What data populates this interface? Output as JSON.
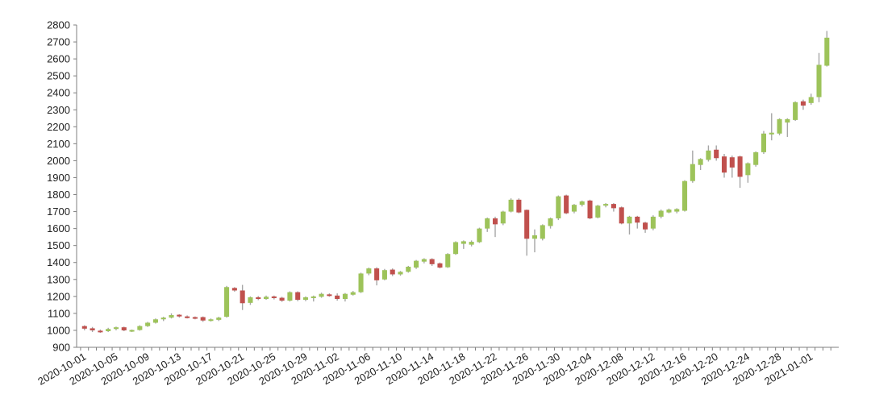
{
  "chart_data": {
    "type": "candlestick",
    "title": "",
    "xlabel": "",
    "ylabel": "",
    "ylim": [
      900,
      2800
    ],
    "yticks": [
      900,
      1000,
      1100,
      1200,
      1300,
      1400,
      1500,
      1600,
      1700,
      1800,
      1900,
      2000,
      2100,
      2200,
      2300,
      2400,
      2500,
      2600,
      2700,
      2800
    ],
    "x_tick_labels": [
      "2020-10-01",
      "2020-10-05",
      "2020-10-09",
      "2020-10-13",
      "2020-10-17",
      "2020-10-21",
      "2020-10-25",
      "2020-10-29",
      "2020-11-02",
      "2020-11-06",
      "2020-11-10",
      "2020-11-14",
      "2020-11-18",
      "2020-11-22",
      "2020-11-26",
      "2020-11-30",
      "2020-12-04",
      "2020-12-08",
      "2020-12-12",
      "2020-12-16",
      "2020-12-20",
      "2020-12-24",
      "2020-12-28",
      "2021-01-01"
    ],
    "grid": false,
    "legend": "none",
    "colors": {
      "up": "#9dc35a",
      "down": "#c0504d",
      "wick": "#a6a6a6",
      "axis": "#7f7f7f"
    },
    "candles": [
      {
        "date": "2020-10-01",
        "open": 1025,
        "close": 1010,
        "high": 1030,
        "low": 1000
      },
      {
        "date": "2020-10-02",
        "open": 1012,
        "close": 1000,
        "high": 1020,
        "low": 990
      },
      {
        "date": "2020-10-03",
        "open": 998,
        "close": 992,
        "high": 1005,
        "low": 985
      },
      {
        "date": "2020-10-04",
        "open": 995,
        "close": 1008,
        "high": 1015,
        "low": 990
      },
      {
        "date": "2020-10-05",
        "open": 1008,
        "close": 1018,
        "high": 1022,
        "low": 1000
      },
      {
        "date": "2020-10-06",
        "open": 1018,
        "close": 1000,
        "high": 1022,
        "low": 995
      },
      {
        "date": "2020-10-07",
        "open": 995,
        "close": 1002,
        "high": 1005,
        "low": 990
      },
      {
        "date": "2020-10-08",
        "open": 1002,
        "close": 1025,
        "high": 1030,
        "low": 998
      },
      {
        "date": "2020-10-09",
        "open": 1025,
        "close": 1045,
        "high": 1050,
        "low": 1020
      },
      {
        "date": "2020-10-10",
        "open": 1045,
        "close": 1065,
        "high": 1070,
        "low": 1040
      },
      {
        "date": "2020-10-11",
        "open": 1065,
        "close": 1075,
        "high": 1080,
        "low": 1055
      },
      {
        "date": "2020-10-12",
        "open": 1075,
        "close": 1090,
        "high": 1100,
        "low": 1070
      },
      {
        "date": "2020-10-13",
        "open": 1092,
        "close": 1082,
        "high": 1095,
        "low": 1075
      },
      {
        "date": "2020-10-14",
        "open": 1082,
        "close": 1075,
        "high": 1088,
        "low": 1070
      },
      {
        "date": "2020-10-15",
        "open": 1078,
        "close": 1072,
        "high": 1082,
        "low": 1065
      },
      {
        "date": "2020-10-16",
        "open": 1078,
        "close": 1058,
        "high": 1082,
        "low": 1050
      },
      {
        "date": "2020-10-17",
        "open": 1058,
        "close": 1065,
        "high": 1070,
        "low": 1052
      },
      {
        "date": "2020-10-18",
        "open": 1062,
        "close": 1075,
        "high": 1080,
        "low": 1055
      },
      {
        "date": "2020-10-19",
        "open": 1080,
        "close": 1255,
        "high": 1262,
        "low": 1075
      },
      {
        "date": "2020-10-20",
        "open": 1250,
        "close": 1235,
        "high": 1255,
        "low": 1228
      },
      {
        "date": "2020-10-21",
        "open": 1235,
        "close": 1160,
        "high": 1268,
        "low": 1120
      },
      {
        "date": "2020-10-22",
        "open": 1162,
        "close": 1195,
        "high": 1200,
        "low": 1150
      },
      {
        "date": "2020-10-23",
        "open": 1195,
        "close": 1185,
        "high": 1202,
        "low": 1178
      },
      {
        "date": "2020-10-24",
        "open": 1185,
        "close": 1198,
        "high": 1205,
        "low": 1180
      },
      {
        "date": "2020-10-25",
        "open": 1200,
        "close": 1190,
        "high": 1205,
        "low": 1182
      },
      {
        "date": "2020-10-26",
        "open": 1192,
        "close": 1175,
        "high": 1198,
        "low": 1168
      },
      {
        "date": "2020-10-27",
        "open": 1175,
        "close": 1225,
        "high": 1230,
        "low": 1170
      },
      {
        "date": "2020-10-28",
        "open": 1225,
        "close": 1180,
        "high": 1230,
        "low": 1172
      },
      {
        "date": "2020-10-29",
        "open": 1180,
        "close": 1195,
        "high": 1200,
        "low": 1172
      },
      {
        "date": "2020-10-30",
        "open": 1190,
        "close": 1200,
        "high": 1205,
        "low": 1170
      },
      {
        "date": "2020-10-31",
        "open": 1198,
        "close": 1215,
        "high": 1222,
        "low": 1192
      },
      {
        "date": "2020-11-01",
        "open": 1212,
        "close": 1205,
        "high": 1218,
        "low": 1198
      },
      {
        "date": "2020-11-02",
        "open": 1205,
        "close": 1185,
        "high": 1218,
        "low": 1175
      },
      {
        "date": "2020-11-03",
        "open": 1185,
        "close": 1215,
        "high": 1220,
        "low": 1170
      },
      {
        "date": "2020-11-04",
        "open": 1210,
        "close": 1225,
        "high": 1232,
        "low": 1205
      },
      {
        "date": "2020-11-05",
        "open": 1225,
        "close": 1335,
        "high": 1340,
        "low": 1220
      },
      {
        "date": "2020-11-06",
        "open": 1335,
        "close": 1365,
        "high": 1370,
        "low": 1325
      },
      {
        "date": "2020-11-07",
        "open": 1365,
        "close": 1295,
        "high": 1372,
        "low": 1265
      },
      {
        "date": "2020-11-08",
        "open": 1300,
        "close": 1355,
        "high": 1362,
        "low": 1295
      },
      {
        "date": "2020-11-09",
        "open": 1358,
        "close": 1330,
        "high": 1365,
        "low": 1320
      },
      {
        "date": "2020-11-10",
        "open": 1330,
        "close": 1345,
        "high": 1350,
        "low": 1322
      },
      {
        "date": "2020-11-11",
        "open": 1345,
        "close": 1375,
        "high": 1380,
        "low": 1340
      },
      {
        "date": "2020-11-12",
        "open": 1370,
        "close": 1410,
        "high": 1415,
        "low": 1362
      },
      {
        "date": "2020-11-13",
        "open": 1405,
        "close": 1420,
        "high": 1425,
        "low": 1395
      },
      {
        "date": "2020-11-14",
        "open": 1420,
        "close": 1390,
        "high": 1425,
        "low": 1380
      },
      {
        "date": "2020-11-15",
        "open": 1395,
        "close": 1370,
        "high": 1400,
        "low": 1365
      },
      {
        "date": "2020-11-16",
        "open": 1372,
        "close": 1450,
        "high": 1455,
        "low": 1368
      },
      {
        "date": "2020-11-17",
        "open": 1450,
        "close": 1520,
        "high": 1525,
        "low": 1445
      },
      {
        "date": "2020-11-18",
        "open": 1510,
        "close": 1525,
        "high": 1530,
        "low": 1480
      },
      {
        "date": "2020-11-19",
        "open": 1505,
        "close": 1522,
        "high": 1530,
        "low": 1495
      },
      {
        "date": "2020-11-20",
        "open": 1520,
        "close": 1600,
        "high": 1605,
        "low": 1515
      },
      {
        "date": "2020-11-21",
        "open": 1600,
        "close": 1660,
        "high": 1665,
        "low": 1580
      },
      {
        "date": "2020-11-22",
        "open": 1660,
        "close": 1625,
        "high": 1670,
        "low": 1550
      },
      {
        "date": "2020-11-23",
        "open": 1630,
        "close": 1700,
        "high": 1705,
        "low": 1620
      },
      {
        "date": "2020-11-24",
        "open": 1700,
        "close": 1770,
        "high": 1778,
        "low": 1695
      },
      {
        "date": "2020-11-25",
        "open": 1770,
        "close": 1695,
        "high": 1778,
        "low": 1690
      },
      {
        "date": "2020-11-26",
        "open": 1710,
        "close": 1540,
        "high": 1712,
        "low": 1440
      },
      {
        "date": "2020-11-27",
        "open": 1540,
        "close": 1560,
        "high": 1595,
        "low": 1460
      },
      {
        "date": "2020-11-28",
        "open": 1540,
        "close": 1620,
        "high": 1625,
        "low": 1530
      },
      {
        "date": "2020-11-29",
        "open": 1615,
        "close": 1660,
        "high": 1665,
        "low": 1600
      },
      {
        "date": "2020-11-30",
        "open": 1660,
        "close": 1790,
        "high": 1795,
        "low": 1650
      },
      {
        "date": "2020-12-01",
        "open": 1795,
        "close": 1690,
        "high": 1800,
        "low": 1685
      },
      {
        "date": "2020-12-02",
        "open": 1700,
        "close": 1740,
        "high": 1745,
        "low": 1690
      },
      {
        "date": "2020-12-03",
        "open": 1740,
        "close": 1760,
        "high": 1765,
        "low": 1730
      },
      {
        "date": "2020-12-04",
        "open": 1765,
        "close": 1660,
        "high": 1770,
        "low": 1655
      },
      {
        "date": "2020-12-05",
        "open": 1665,
        "close": 1735,
        "high": 1740,
        "low": 1660
      },
      {
        "date": "2020-12-06",
        "open": 1735,
        "close": 1745,
        "high": 1750,
        "low": 1725
      },
      {
        "date": "2020-12-07",
        "open": 1745,
        "close": 1720,
        "high": 1750,
        "low": 1700
      },
      {
        "date": "2020-12-08",
        "open": 1725,
        "close": 1630,
        "high": 1730,
        "low": 1625
      },
      {
        "date": "2020-12-09",
        "open": 1630,
        "close": 1670,
        "high": 1675,
        "low": 1565
      },
      {
        "date": "2020-12-10",
        "open": 1670,
        "close": 1635,
        "high": 1675,
        "low": 1600
      },
      {
        "date": "2020-12-11",
        "open": 1635,
        "close": 1595,
        "high": 1640,
        "low": 1575
      },
      {
        "date": "2020-12-12",
        "open": 1600,
        "close": 1670,
        "high": 1678,
        "low": 1590
      },
      {
        "date": "2020-12-13",
        "open": 1670,
        "close": 1705,
        "high": 1712,
        "low": 1660
      },
      {
        "date": "2020-12-14",
        "open": 1695,
        "close": 1712,
        "high": 1718,
        "low": 1690
      },
      {
        "date": "2020-12-15",
        "open": 1700,
        "close": 1715,
        "high": 1720,
        "low": 1690
      },
      {
        "date": "2020-12-16",
        "open": 1705,
        "close": 1880,
        "high": 1885,
        "low": 1700
      },
      {
        "date": "2020-12-17",
        "open": 1880,
        "close": 1980,
        "high": 2060,
        "low": 1870
      },
      {
        "date": "2020-12-18",
        "open": 1975,
        "close": 2010,
        "high": 2015,
        "low": 1945
      },
      {
        "date": "2020-12-19",
        "open": 2005,
        "close": 2060,
        "high": 2090,
        "low": 1995
      },
      {
        "date": "2020-12-20",
        "open": 2065,
        "close": 2015,
        "high": 2090,
        "low": 2000
      },
      {
        "date": "2020-12-21",
        "open": 2025,
        "close": 1930,
        "high": 2040,
        "low": 1900
      },
      {
        "date": "2020-12-22",
        "open": 2020,
        "close": 1960,
        "high": 2030,
        "low": 1900
      },
      {
        "date": "2020-12-23",
        "open": 2025,
        "close": 1905,
        "high": 2030,
        "low": 1840
      },
      {
        "date": "2020-12-24",
        "open": 1915,
        "close": 1985,
        "high": 1990,
        "low": 1870
      },
      {
        "date": "2020-12-25",
        "open": 1975,
        "close": 2050,
        "high": 2055,
        "low": 1965
      },
      {
        "date": "2020-12-26",
        "open": 2050,
        "close": 2160,
        "high": 2175,
        "low": 2040
      },
      {
        "date": "2020-12-27",
        "open": 2155,
        "close": 2165,
        "high": 2280,
        "low": 2120
      },
      {
        "date": "2020-12-28",
        "open": 2160,
        "close": 2245,
        "high": 2250,
        "low": 2150
      },
      {
        "date": "2020-12-29",
        "open": 2225,
        "close": 2245,
        "high": 2250,
        "low": 2140
      },
      {
        "date": "2020-12-30",
        "open": 2240,
        "close": 2345,
        "high": 2350,
        "low": 2235
      },
      {
        "date": "2020-12-31",
        "open": 2350,
        "close": 2325,
        "high": 2360,
        "low": 2300
      },
      {
        "date": "2021-01-01",
        "open": 2340,
        "close": 2375,
        "high": 2395,
        "low": 2330
      },
      {
        "date": "2021-01-02",
        "open": 2375,
        "close": 2565,
        "high": 2635,
        "low": 2345
      },
      {
        "date": "2021-01-03",
        "open": 2560,
        "close": 2725,
        "high": 2765,
        "low": 2555
      }
    ]
  }
}
